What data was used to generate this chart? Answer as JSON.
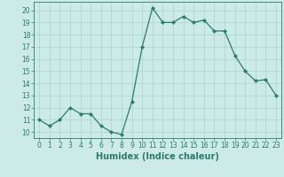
{
  "x": [
    0,
    1,
    2,
    3,
    4,
    5,
    6,
    7,
    8,
    9,
    10,
    11,
    12,
    13,
    14,
    15,
    16,
    17,
    18,
    19,
    20,
    21,
    22,
    23
  ],
  "y": [
    11,
    10.5,
    11,
    12,
    11.5,
    11.5,
    10.5,
    10,
    9.8,
    12.5,
    17,
    20.2,
    19,
    19,
    19.5,
    19,
    19.2,
    18.3,
    18.3,
    16.3,
    15,
    14.2,
    14.3,
    13
  ],
  "line_color": "#2d7a6e",
  "marker": "D",
  "marker_size": 2.2,
  "bg_color": "#cceae7",
  "grid_color": "#aad4cf",
  "xlabel": "Humidex (Indice chaleur)",
  "ylabel": "",
  "xlim": [
    -0.5,
    23.5
  ],
  "ylim": [
    9.5,
    20.7
  ],
  "yticks": [
    10,
    11,
    12,
    13,
    14,
    15,
    16,
    17,
    18,
    19,
    20
  ],
  "xticks": [
    0,
    1,
    2,
    3,
    4,
    5,
    6,
    7,
    8,
    9,
    10,
    11,
    12,
    13,
    14,
    15,
    16,
    17,
    18,
    19,
    20,
    21,
    22,
    23
  ],
  "tick_fontsize": 5.5,
  "xlabel_fontsize": 7.0,
  "linewidth": 0.9
}
